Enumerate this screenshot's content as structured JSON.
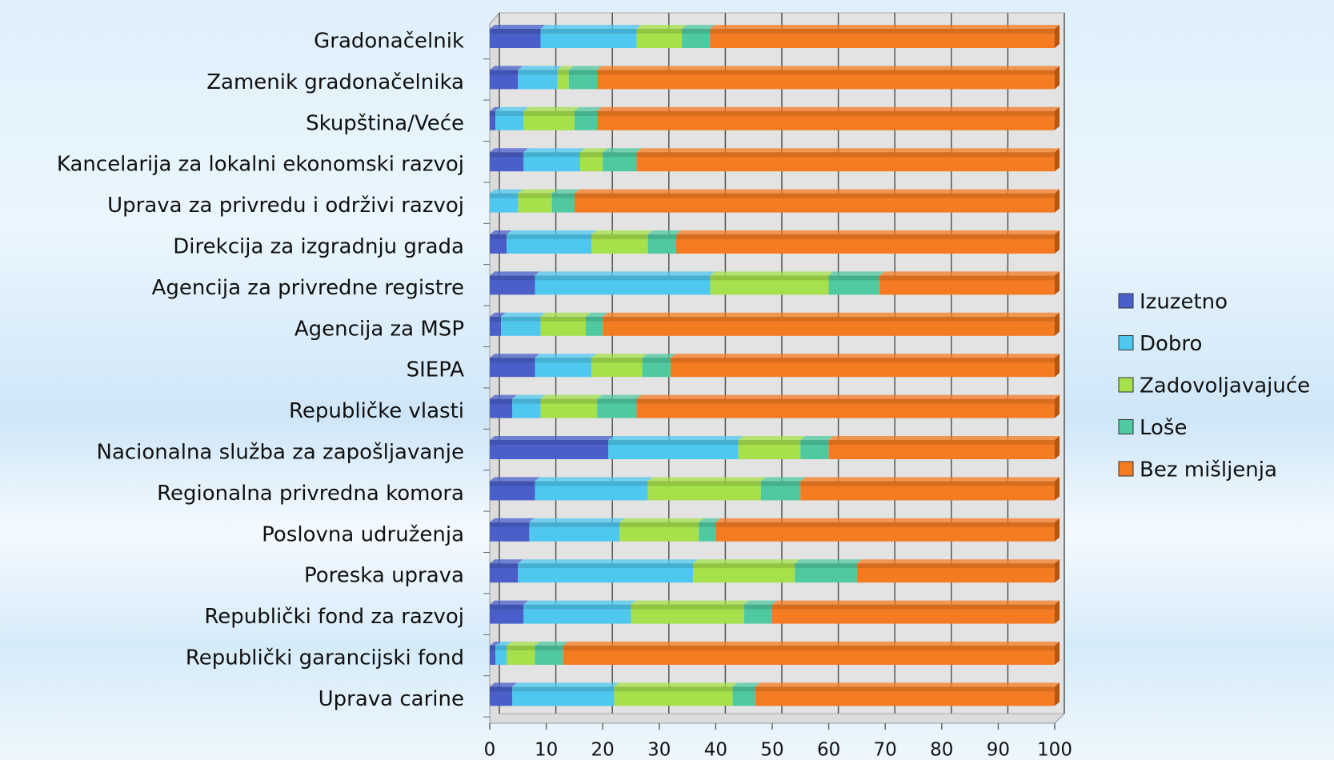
{
  "chart_data": {
    "type": "stacked_bar_horizontal",
    "categories": [
      "Gradonačelnik",
      "Zamenik gradonačelnika",
      "Skupština/Veće",
      "Kancelarija za lokalni ekonomski razvoj",
      "Uprava za privredu i održivi razvoj",
      "Direkcija za izgradnju grada",
      "Agencija za privredne registre",
      "Agencija za MSP",
      "SIEPA",
      "Republičke vlasti",
      "Nacionalna služba za zapošljavanje",
      "Regionalna privredna komora",
      "Poslovna udruženja",
      "Poreska uprava",
      "Republički fond za razvoj",
      "Republički garancijski fond",
      "Uprava carine"
    ],
    "series": [
      {
        "name": "Izuzetno",
        "color": "#4a5fc9",
        "values": [
          9,
          5,
          1,
          6,
          0,
          3,
          8,
          2,
          8,
          4,
          21,
          8,
          7,
          5,
          6,
          1,
          4
        ]
      },
      {
        "name": "Dobro",
        "color": "#4fc8f0",
        "values": [
          17,
          7,
          5,
          10,
          5,
          15,
          31,
          7,
          10,
          5,
          23,
          20,
          16,
          31,
          19,
          2,
          18
        ]
      },
      {
        "name": "Zadovoljavajuće",
        "color": "#a6e04a",
        "values": [
          8,
          2,
          9,
          4,
          6,
          10,
          21,
          8,
          9,
          10,
          11,
          20,
          14,
          18,
          20,
          5,
          21
        ]
      },
      {
        "name": "Loše",
        "color": "#4fcaa0",
        "values": [
          5,
          5,
          4,
          6,
          4,
          5,
          9,
          3,
          5,
          7,
          5,
          7,
          3,
          11,
          5,
          5,
          4
        ]
      },
      {
        "name": "Bez mišljenja",
        "color": "#f57b22",
        "values": [
          61,
          81,
          81,
          74,
          85,
          67,
          31,
          80,
          68,
          74,
          40,
          45,
          60,
          35,
          50,
          87,
          53
        ]
      }
    ],
    "xlim": [
      0,
      100
    ],
    "xticks": [
      0,
      10,
      20,
      30,
      40,
      50,
      60,
      70,
      80,
      90,
      100
    ],
    "grid": true,
    "legend": "right"
  }
}
